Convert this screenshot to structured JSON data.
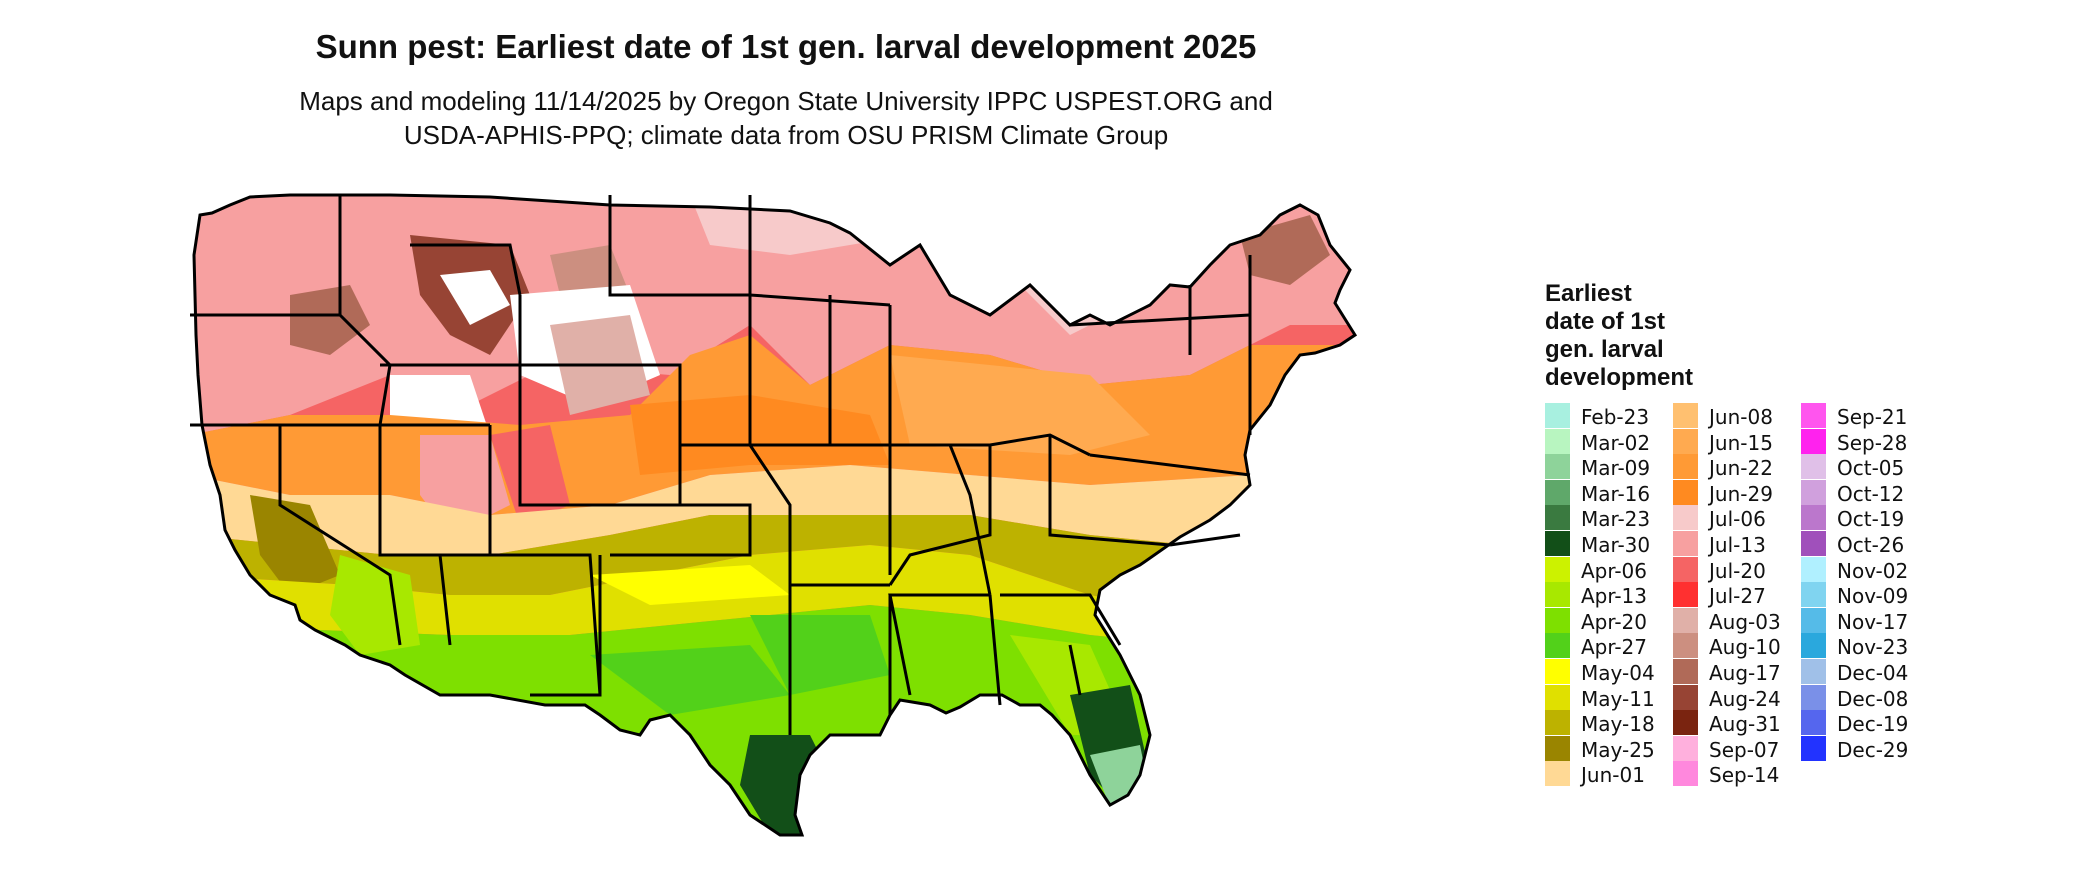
{
  "header": {
    "title": "Sunn pest: Earliest date of 1st gen. larval development 2025",
    "subtitle_line1": "Maps and modeling 11/14/2025 by Oregon State University IPPC USPEST.ORG and",
    "subtitle_line2": "USDA-APHIS-PPQ; climate data from OSU PRISM Climate Group"
  },
  "legend": {
    "title_lines": [
      "Earliest",
      "date of 1st",
      "gen. larval",
      "development"
    ],
    "columns": [
      [
        {
          "label": "Feb-23",
          "color": "#a8f0e0"
        },
        {
          "label": "Mar-02",
          "color": "#b8f5c0"
        },
        {
          "label": "Mar-09",
          "color": "#8ed39a"
        },
        {
          "label": "Mar-16",
          "color": "#5fa86a"
        },
        {
          "label": "Mar-23",
          "color": "#3a7a40"
        },
        {
          "label": "Mar-30",
          "color": "#124f18"
        },
        {
          "label": "Apr-06",
          "color": "#ccf200"
        },
        {
          "label": "Apr-13",
          "color": "#a8e800"
        },
        {
          "label": "Apr-20",
          "color": "#7ee000"
        },
        {
          "label": "Apr-27",
          "color": "#52d11a"
        },
        {
          "label": "May-04",
          "color": "#ffff00"
        },
        {
          "label": "May-11",
          "color": "#e0e000"
        },
        {
          "label": "May-18",
          "color": "#bdb200"
        },
        {
          "label": "May-25",
          "color": "#9a8500"
        },
        {
          "label": "Jun-01",
          "color": "#ffd995"
        }
      ],
      [
        {
          "label": "Jun-08",
          "color": "#ffc070"
        },
        {
          "label": "Jun-15",
          "color": "#ffaa50"
        },
        {
          "label": "Jun-22",
          "color": "#ff9a35"
        },
        {
          "label": "Jun-29",
          "color": "#ff8a20"
        },
        {
          "label": "Jul-06",
          "color": "#f7caca"
        },
        {
          "label": "Jul-13",
          "color": "#f7a0a0"
        },
        {
          "label": "Jul-20",
          "color": "#f56464"
        },
        {
          "label": "Jul-27",
          "color": "#ff3030"
        },
        {
          "label": "Aug-03",
          "color": "#e0b0a8"
        },
        {
          "label": "Aug-10",
          "color": "#cc8f80"
        },
        {
          "label": "Aug-17",
          "color": "#b06a58"
        },
        {
          "label": "Aug-24",
          "color": "#974434"
        },
        {
          "label": "Aug-31",
          "color": "#7a2410"
        },
        {
          "label": "Sep-07",
          "color": "#ffb0dd"
        },
        {
          "label": "Sep-14",
          "color": "#ff88dd"
        }
      ],
      [
        {
          "label": "Sep-21",
          "color": "#ff55ee"
        },
        {
          "label": "Sep-28",
          "color": "#ff22ee"
        },
        {
          "label": "Oct-05",
          "color": "#e0c0e8"
        },
        {
          "label": "Oct-12",
          "color": "#d0a0dd"
        },
        {
          "label": "Oct-19",
          "color": "#bb77cc"
        },
        {
          "label": "Oct-26",
          "color": "#a050bb"
        },
        {
          "label": "Nov-02",
          "color": "#b0f0ff"
        },
        {
          "label": "Nov-09",
          "color": "#80d4f0"
        },
        {
          "label": "Nov-17",
          "color": "#55bbe8"
        },
        {
          "label": "Nov-23",
          "color": "#2aa8dd"
        },
        {
          "label": "Dec-04",
          "color": "#a0c0e8"
        },
        {
          "label": "Dec-08",
          "color": "#7a90e8"
        },
        {
          "label": "Dec-19",
          "color": "#5566ee"
        },
        {
          "label": "Dec-29",
          "color": "#2233ff"
        }
      ]
    ]
  }
}
